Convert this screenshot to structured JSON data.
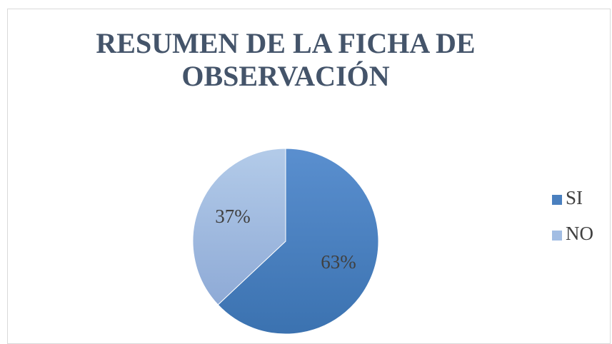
{
  "chart_data": {
    "type": "pie",
    "title": "RESUMEN DE LA FICHA DE OBSERVACIÓN",
    "categories": [
      "SI",
      "NO"
    ],
    "values": [
      63,
      37
    ],
    "value_labels": [
      "63%",
      "37%"
    ],
    "colors": [
      "#4a80bf",
      "#a2bde3"
    ],
    "legend": "right"
  }
}
